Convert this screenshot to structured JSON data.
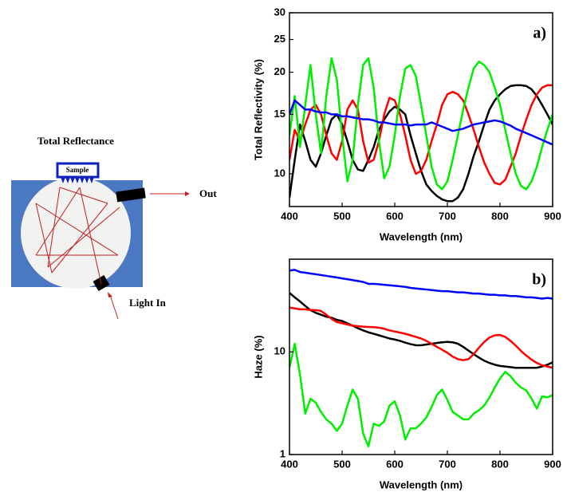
{
  "diagram": {
    "title": "Total Reflectance",
    "sample": "Sample",
    "out": "Out",
    "light_in": "Light In"
  },
  "chart_data": [
    {
      "type": "line",
      "panel_label": "a)",
      "xlabel": "Wavelength (nm)",
      "ylabel": "Total Reflectivity (%)",
      "log_y": true,
      "xlim": [
        400,
        900
      ],
      "xticks": [
        400,
        500,
        600,
        700,
        800,
        900
      ],
      "ylim": [
        8,
        30
      ],
      "yticks": [
        10,
        15,
        20,
        25,
        30
      ],
      "x": [
        400,
        410,
        420,
        430,
        440,
        450,
        460,
        470,
        480,
        490,
        500,
        510,
        520,
        530,
        540,
        550,
        560,
        570,
        580,
        590,
        600,
        610,
        620,
        630,
        640,
        650,
        660,
        670,
        680,
        690,
        700,
        710,
        720,
        730,
        740,
        750,
        760,
        770,
        780,
        790,
        800,
        810,
        820,
        830,
        840,
        850,
        860,
        870,
        880,
        890,
        900
      ],
      "series": [
        {
          "color": "#000000",
          "values": [
            8.5,
            11,
            14,
            12.5,
            11,
            10.5,
            11.5,
            13,
            14.5,
            15,
            14,
            12.5,
            11,
            10.3,
            10.2,
            11,
            12,
            13.5,
            14.5,
            15.3,
            15.8,
            15.5,
            15,
            13,
            11.5,
            10.2,
            9.3,
            8.9,
            8.6,
            8.4,
            8.3,
            8.3,
            8.5,
            9,
            10,
            11.3,
            12.5,
            14,
            15.5,
            16.5,
            17.2,
            17.8,
            18.2,
            18.3,
            18.3,
            18.2,
            17.8,
            17,
            16,
            15,
            14
          ]
        },
        {
          "color": "#ff0000",
          "values": [
            11,
            13.5,
            12.5,
            14,
            15.5,
            16,
            15,
            13,
            11.5,
            11,
            12.5,
            15.5,
            16.5,
            15.5,
            12.5,
            10.8,
            11,
            12.5,
            15,
            16.8,
            16.5,
            15,
            13,
            11,
            10,
            10.2,
            11,
            12.5,
            14,
            16,
            17.2,
            17.5,
            17.2,
            16.5,
            15,
            13.5,
            12,
            10.8,
            10,
            9.4,
            9.3,
            9.6,
            10.5,
            11.5,
            13,
            14.5,
            16,
            17.2,
            18,
            18.3,
            18.3
          ]
        },
        {
          "color": "#00ee00",
          "values": [
            13,
            17,
            12,
            16,
            21,
            15,
            11.5,
            17,
            22,
            19,
            13,
            9.5,
            11,
            16,
            21,
            22,
            18,
            12.5,
            9.7,
            10.5,
            13,
            17,
            20.5,
            21,
            19.5,
            16,
            13,
            10.5,
            9.3,
            9,
            9.5,
            11,
            13,
            15.5,
            18,
            20.5,
            21.5,
            21,
            20,
            18,
            16,
            13.5,
            11.5,
            10,
            9.2,
            9,
            9.5,
            10.5,
            12,
            13.5,
            15
          ]
        },
        {
          "color": "#0000ff",
          "values": [
            15,
            16.5,
            16,
            15.5,
            15.5,
            15.3,
            15.2,
            15.2,
            15,
            15,
            14.8,
            14.8,
            14.7,
            14.6,
            14.5,
            14.5,
            14.4,
            14.2,
            14.2,
            14.1,
            14,
            14,
            14,
            13.9,
            14,
            14,
            14,
            14.2,
            14,
            13.8,
            13.6,
            13.4,
            13.5,
            13.6,
            13.8,
            14,
            14.1,
            14.2,
            14.3,
            14.4,
            14.3,
            14.1,
            13.9,
            13.6,
            13.4,
            13.2,
            13,
            12.8,
            12.6,
            12.4,
            12.2
          ]
        }
      ]
    },
    {
      "type": "line",
      "panel_label": "b)",
      "xlabel": "Wavelength (nm)",
      "ylabel": "Haze (%)",
      "log_y": true,
      "xlim": [
        400,
        900
      ],
      "xticks": [
        400,
        500,
        600,
        700,
        800,
        900
      ],
      "ylim": [
        1,
        80
      ],
      "yticks": [
        1,
        10
      ],
      "x": [
        400,
        410,
        420,
        430,
        440,
        450,
        460,
        470,
        480,
        490,
        500,
        510,
        520,
        530,
        540,
        550,
        560,
        570,
        580,
        590,
        600,
        610,
        620,
        630,
        640,
        650,
        660,
        670,
        680,
        690,
        700,
        710,
        720,
        730,
        740,
        750,
        760,
        770,
        780,
        790,
        800,
        810,
        820,
        830,
        840,
        850,
        860,
        870,
        880,
        890,
        900
      ],
      "series": [
        {
          "color": "#0000ff",
          "values": [
            62,
            63,
            60,
            59,
            58,
            57,
            56,
            55,
            54,
            53,
            52,
            51,
            50,
            49,
            48,
            46,
            46,
            45.5,
            45,
            44.5,
            44,
            43.5,
            43,
            42,
            41.5,
            41,
            40.5,
            40,
            39.5,
            39,
            39,
            38.5,
            38,
            38,
            37.5,
            37,
            37,
            36.5,
            36,
            36,
            35.5,
            35.5,
            35,
            35,
            34.5,
            34,
            34,
            33.5,
            33,
            33.5,
            33
          ]
        },
        {
          "color": "#000000",
          "values": [
            37.5,
            34,
            31,
            28,
            25.5,
            24,
            23,
            22,
            21.5,
            20.5,
            20,
            19,
            18,
            17,
            16.2,
            15.5,
            15,
            14.5,
            14,
            13.5,
            13.2,
            12.8,
            12.3,
            11.9,
            11.6,
            11.6,
            11.8,
            12,
            12.2,
            12.4,
            12.5,
            12.4,
            12,
            11.2,
            10.3,
            9.5,
            8.8,
            8.2,
            7.8,
            7.5,
            7.3,
            7.2,
            7.1,
            7,
            7,
            7,
            7,
            7,
            7.2,
            7.5,
            7.9
          ]
        },
        {
          "color": "#ff0000",
          "values": [
            27,
            26.5,
            26,
            26,
            25.5,
            25.5,
            25,
            23,
            21,
            19.5,
            19,
            18.5,
            18,
            17.8,
            17.6,
            17.5,
            17.4,
            17.2,
            16.8,
            16.2,
            15.8,
            15.4,
            15,
            14.5,
            14,
            13.5,
            12.8,
            12,
            11.2,
            10.5,
            9.8,
            9,
            8.5,
            8.3,
            8.5,
            9.5,
            11,
            12.5,
            13.8,
            14.5,
            14.6,
            14,
            12.8,
            11.5,
            10.2,
            9.2,
            8.4,
            7.8,
            7.4,
            7.2,
            7
          ]
        },
        {
          "color": "#00ee00",
          "values": [
            7,
            12,
            6,
            2.5,
            3.5,
            3.2,
            2.6,
            2.2,
            2,
            1.7,
            2,
            3,
            4.3,
            3.5,
            1.6,
            1.2,
            2,
            1.9,
            2.1,
            3,
            3.3,
            2.4,
            1.4,
            1.8,
            1.8,
            2,
            2.3,
            2.9,
            3.8,
            4.3,
            3.4,
            2.6,
            2.4,
            2.2,
            2.2,
            2.5,
            2.7,
            3,
            3.6,
            4.5,
            5.5,
            6.4,
            5.8,
            5,
            4.5,
            4.2,
            3.5,
            2.8,
            3.7,
            3.6,
            3.8
          ]
        }
      ]
    }
  ]
}
